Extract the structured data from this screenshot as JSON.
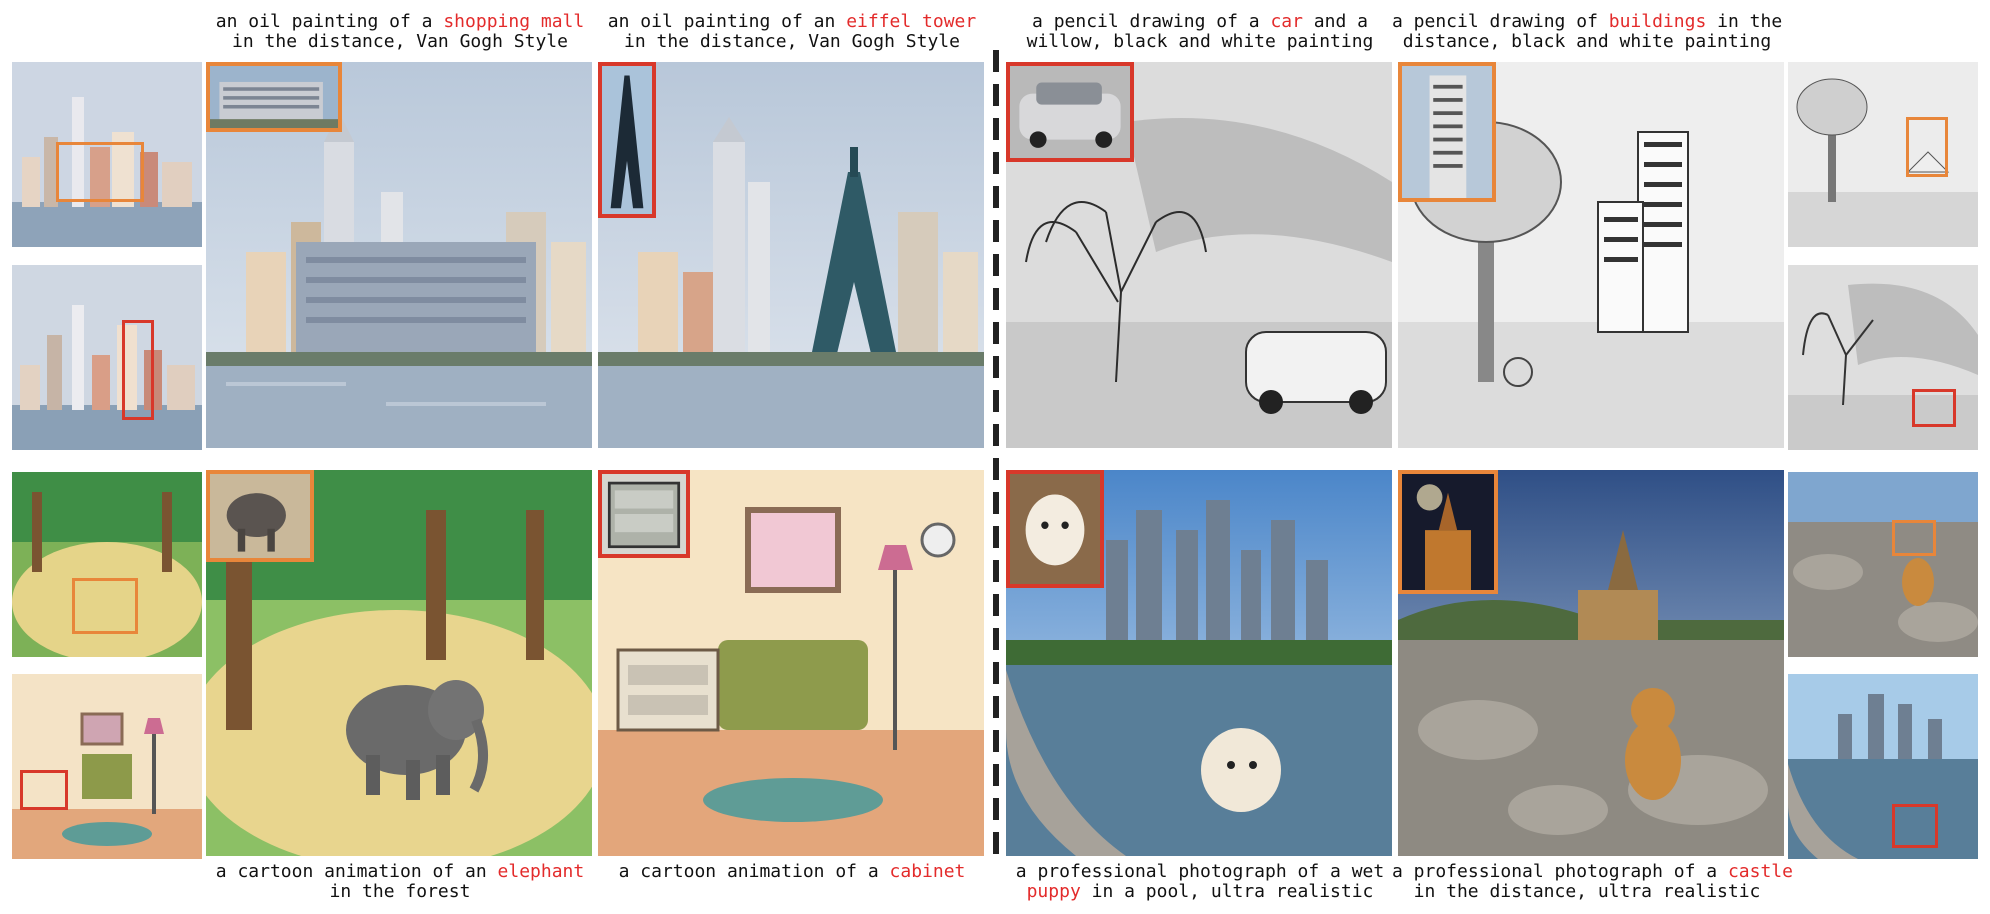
{
  "captions": {
    "top_1": {
      "pre": "an oil painting of a ",
      "hl": "shopping mall",
      "post": "in the distance, Van Gogh Style"
    },
    "top_2": {
      "pre": "an oil painting of an ",
      "hl": "eiffel tower",
      "post": "in the distance, Van Gogh Style"
    },
    "top_3": {
      "pre": "a pencil drawing of a ",
      "hl": "car",
      "mid": " and a",
      "post": "willow, black and white painting"
    },
    "top_4": {
      "pre": "a pencil drawing of ",
      "hl": "buildings",
      "mid": " in the",
      "post": "distance, black and white painting"
    },
    "bot_1": {
      "pre": "a cartoon animation of an ",
      "hl": "elephant",
      "post": "in the forest"
    },
    "bot_2": {
      "pre": "a cartoon animation of a ",
      "hl": "cabinet",
      "post": ""
    },
    "bot_3": {
      "pre": "a professional photograph of a wet",
      "hl": "puppy",
      "post": " in a pool, ultra realistic"
    },
    "bot_4": {
      "pre": "a professional photograph of a ",
      "hl": "castle",
      "post": "in the distance, ultra realistic"
    }
  },
  "colors": {
    "highlight": "#e32b2b",
    "orange_box": "#e8863a",
    "red_box": "#d8382a"
  }
}
